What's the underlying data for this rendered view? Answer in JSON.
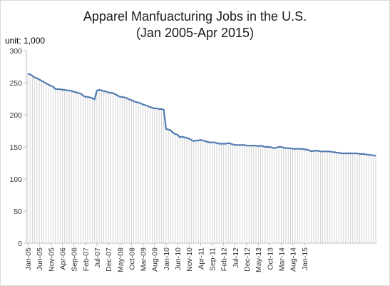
{
  "chart_data": {
    "type": "line",
    "title": "Apparel Manfuacturing Jobs in the U.S.",
    "subtitle": "(Jan 2005-Apr 2015)",
    "unit_label": "unit: 1,000",
    "ylim": [
      0,
      300
    ],
    "yticks": [
      0,
      50,
      100,
      150,
      200,
      250,
      300
    ],
    "x_tick_labels": [
      "Jan-05",
      "Jun-05",
      "Nov-05",
      "Apr-06",
      "Sep-06",
      "Feb-07",
      "Jul-07",
      "Dec-07",
      "May-08",
      "Oct-08",
      "Mar-09",
      "Aug-09",
      "Jan-10",
      "Jun-10",
      "Nov-10",
      "Apr-11",
      "Sep-11",
      "Feb-12",
      "Jul-12",
      "Dec-12",
      "May-13",
      "Oct-13",
      "Mar-14",
      "Aug-14",
      "Jan-15"
    ],
    "x_tick_step_months": 5,
    "drop_lines": true,
    "line_color": "#4f7bb0",
    "values": [
      264,
      263,
      261,
      258,
      257,
      255,
      253,
      251,
      249,
      247,
      245,
      244,
      240,
      240,
      240,
      239,
      239,
      238,
      238,
      237,
      236,
      235,
      234,
      233,
      230,
      228,
      228,
      227,
      226,
      224,
      238,
      239,
      238,
      237,
      236,
      235,
      234,
      234,
      232,
      230,
      228,
      228,
      227,
      226,
      224,
      223,
      221,
      220,
      219,
      218,
      216,
      215,
      214,
      212,
      211,
      210,
      210,
      209,
      209,
      208,
      178,
      177,
      176,
      172,
      170,
      169,
      165,
      166,
      165,
      164,
      163,
      161,
      159,
      160,
      160,
      161,
      160,
      159,
      158,
      157,
      157,
      157,
      156,
      155,
      155,
      155,
      155,
      156,
      155,
      154,
      153,
      153,
      153,
      153,
      153,
      152,
      152,
      152,
      152,
      152,
      151,
      152,
      151,
      150,
      150,
      150,
      149,
      148,
      149,
      150,
      150,
      149,
      148,
      148,
      148,
      147,
      147,
      147,
      147,
      147,
      146,
      146,
      145,
      143,
      144,
      144,
      144,
      143,
      143,
      143,
      143,
      143,
      142,
      142,
      141,
      141,
      140,
      140,
      140,
      140,
      140,
      140,
      140,
      140,
      139,
      139,
      139,
      138,
      138,
      137,
      137,
      136
    ]
  }
}
